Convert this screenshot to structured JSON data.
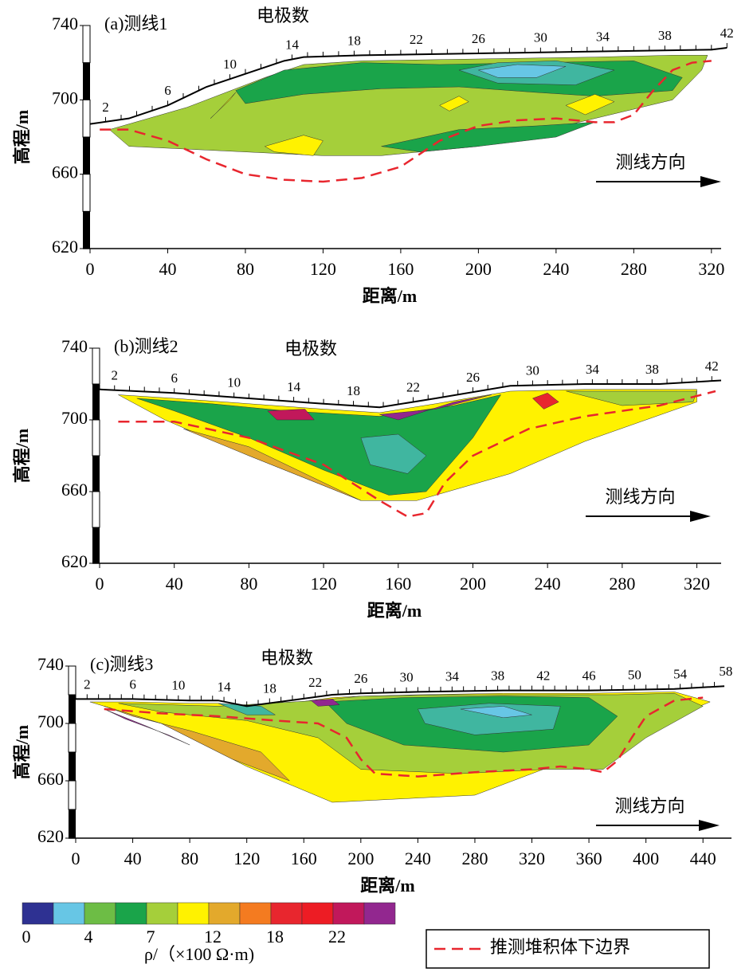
{
  "chart_data": [
    {
      "type": "resistivity-section",
      "title": "(a)测线1",
      "electrode_label": "电极数",
      "xlabel": "距离/m",
      "ylabel": "高程/m",
      "direction_label": "测线方向",
      "xlim": [
        0,
        325
      ],
      "ylim": [
        620,
        740
      ],
      "xticks": [
        0,
        40,
        80,
        120,
        160,
        200,
        240,
        280,
        320
      ],
      "yticks": [
        620,
        660,
        700,
        740
      ],
      "electrodes": [
        2,
        6,
        10,
        14,
        18,
        22,
        26,
        30,
        34,
        38,
        42
      ],
      "surface": {
        "color": "#000000",
        "x": [
          0,
          20,
          40,
          60,
          80,
          100,
          110,
          140,
          200,
          260,
          320,
          328
        ],
        "y": [
          687,
          690,
          697,
          707,
          714,
          721,
          723,
          724,
          725,
          726,
          727,
          728
        ]
      },
      "regions": [
        {
          "color": "#a5cf3a",
          "x": [
            10,
            30,
            50,
            70,
            90,
            110,
            140,
            200,
            260,
            300,
            318,
            315,
            300,
            260,
            220,
            200,
            150,
            120,
            20
          ],
          "y": [
            684,
            690,
            696,
            704,
            712,
            719,
            721,
            722,
            723,
            724,
            724,
            716,
            700,
            690,
            680,
            675,
            670,
            670,
            675
          ]
        },
        {
          "color": "#1aa44a",
          "x": [
            75,
            100,
            140,
            180,
            230,
            280,
            305,
            300,
            260,
            230,
            190,
            150,
            110,
            80
          ],
          "y": [
            705,
            716,
            720,
            719,
            720,
            721,
            712,
            705,
            702,
            704,
            707,
            706,
            703,
            698
          ]
        },
        {
          "color": "#1aa44a",
          "x": [
            150,
            190,
            230,
            260,
            240,
            200,
            170
          ],
          "y": [
            675,
            684,
            686,
            688,
            680,
            675,
            672
          ]
        },
        {
          "color": "#40b6a0",
          "x": [
            190,
            210,
            240,
            270,
            250,
            210
          ],
          "y": [
            716,
            720,
            721,
            716,
            708,
            709
          ]
        },
        {
          "color": "#67c6e5",
          "x": [
            200,
            220,
            245,
            230,
            210
          ],
          "y": [
            716,
            719,
            718,
            712,
            712
          ]
        },
        {
          "color": "#fff200",
          "x": [
            90,
            110,
            120,
            115,
            95
          ],
          "y": [
            675,
            681,
            678,
            670,
            672
          ]
        },
        {
          "color": "#fff200",
          "x": [
            180,
            190,
            195,
            185
          ],
          "y": [
            697,
            702,
            699,
            694
          ]
        },
        {
          "color": "#fff200",
          "x": [
            245,
            260,
            270,
            255
          ],
          "y": [
            697,
            703,
            699,
            692
          ]
        },
        {
          "color": "#fff200",
          "x": [
            65,
            75,
            72,
            62
          ],
          "y": [
            693,
            704,
            700,
            690
          ]
        }
      ],
      "boundary": {
        "color": "#e8262e",
        "x": [
          5,
          20,
          40,
          60,
          80,
          100,
          120,
          140,
          160,
          180,
          200,
          220,
          240,
          260,
          270,
          280,
          290,
          300,
          310,
          320
        ],
        "y": [
          684,
          684,
          678,
          668,
          660,
          657,
          656,
          658,
          664,
          678,
          686,
          689,
          690,
          688,
          688,
          692,
          705,
          716,
          720,
          721
        ]
      }
    },
    {
      "type": "resistivity-section",
      "title": "(b)测线2",
      "electrode_label": "电极数",
      "xlabel": "距离/m",
      "ylabel": "高程/m",
      "direction_label": "测线方向",
      "xlim": [
        0,
        333
      ],
      "ylim": [
        620,
        740
      ],
      "xticks": [
        0,
        40,
        80,
        120,
        160,
        200,
        240,
        280,
        320
      ],
      "yticks": [
        620,
        660,
        700,
        740
      ],
      "electrodes": [
        2,
        6,
        10,
        14,
        18,
        22,
        26,
        30,
        34,
        38,
        42
      ],
      "surface": {
        "color": "#000000",
        "x": [
          0,
          40,
          80,
          120,
          150,
          180,
          220,
          260,
          300,
          333
        ],
        "y": [
          717,
          715,
          712,
          709,
          707,
          712,
          719,
          720,
          720,
          722
        ]
      },
      "regions": [
        {
          "color": "#fff200",
          "x": [
            10,
            40,
            80,
            120,
            150,
            180,
            220,
            260,
            300,
            320,
            320,
            260,
            220,
            170,
            140,
            80,
            35
          ],
          "y": [
            714,
            712,
            709,
            706,
            704,
            709,
            716,
            717,
            717,
            717,
            710,
            688,
            670,
            655,
            655,
            680,
            700
          ]
        },
        {
          "color": "#1aa44a",
          "x": [
            20,
            60,
            100,
            150,
            190,
            215,
            200,
            175,
            155,
            120,
            80,
            40
          ],
          "y": [
            712,
            709,
            705,
            702,
            708,
            714,
            690,
            660,
            658,
            672,
            690,
            705
          ]
        },
        {
          "color": "#40b6a0",
          "x": [
            140,
            160,
            175,
            165,
            145
          ],
          "y": [
            690,
            692,
            680,
            670,
            675
          ]
        },
        {
          "color": "#e3a92c",
          "x": [
            45,
            80,
            140,
            120,
            80
          ],
          "y": [
            695,
            680,
            655,
            665,
            685
          ]
        },
        {
          "color": "#92278f",
          "x": [
            150,
            180,
            210,
            190,
            160
          ],
          "y": [
            703,
            706,
            714,
            710,
            700
          ]
        },
        {
          "color": "#c1185b",
          "x": [
            90,
            110,
            115,
            95
          ],
          "y": [
            705,
            706,
            700,
            700
          ]
        },
        {
          "color": "#e8262e",
          "x": [
            232,
            240,
            246,
            238
          ],
          "y": [
            712,
            715,
            710,
            706
          ]
        },
        {
          "color": "#a5cf3a",
          "x": [
            250,
            290,
            320,
            318,
            280
          ],
          "y": [
            716,
            716,
            716,
            710,
            708
          ]
        }
      ],
      "boundary": {
        "color": "#e8262e",
        "x": [
          10,
          40,
          80,
          120,
          150,
          165,
          175,
          185,
          200,
          230,
          260,
          300,
          330
        ],
        "y": [
          699,
          699,
          690,
          675,
          655,
          646,
          648,
          665,
          680,
          695,
          702,
          708,
          716
        ]
      }
    },
    {
      "type": "resistivity-section",
      "title": "(c)测线3",
      "electrode_label": "电极数",
      "xlabel": "距离/m",
      "ylabel": "高程/m",
      "direction_label": "测线方向",
      "xlim": [
        0,
        460
      ],
      "ylim": [
        620,
        740
      ],
      "xticks": [
        0,
        40,
        80,
        120,
        160,
        200,
        240,
        280,
        320,
        360,
        400,
        440
      ],
      "yticks": [
        620,
        660,
        700,
        740
      ],
      "electrodes": [
        2,
        6,
        10,
        14,
        18,
        22,
        26,
        30,
        34,
        38,
        42,
        46,
        50,
        54,
        58
      ],
      "surface": {
        "color": "#000000",
        "x": [
          0,
          40,
          80,
          100,
          120,
          150,
          180,
          200,
          240,
          300,
          360,
          420,
          455
        ],
        "y": [
          717,
          717,
          716,
          716,
          712,
          716,
          720,
          721,
          722,
          723,
          723,
          724,
          726
        ]
      },
      "regions": [
        {
          "color": "#fff200",
          "x": [
            10,
            40,
            80,
            100,
            120,
            150,
            180,
            200,
            240,
            300,
            360,
            420,
            445,
            360,
            280,
            180,
            120,
            60
          ],
          "y": [
            715,
            715,
            714,
            714,
            710,
            714,
            718,
            719,
            720,
            721,
            721,
            722,
            715,
            680,
            650,
            645,
            670,
            700
          ]
        },
        {
          "color": "#a5cf3a",
          "x": [
            30,
            100,
            170,
            200,
            260,
            330,
            380,
            420,
            440,
            400,
            370,
            330,
            270,
            200,
            170,
            120,
            60
          ],
          "y": [
            714,
            712,
            716,
            719,
            720,
            720,
            720,
            721,
            712,
            690,
            668,
            668,
            665,
            668,
            690,
            702,
            708
          ]
        },
        {
          "color": "#1aa44a",
          "x": [
            175,
            230,
            300,
            360,
            380,
            360,
            300,
            230,
            190
          ],
          "y": [
            715,
            718,
            719,
            718,
            705,
            685,
            680,
            685,
            700
          ]
        },
        {
          "color": "#40b6a0",
          "x": [
            240,
            290,
            340,
            335,
            280,
            245
          ],
          "y": [
            710,
            714,
            712,
            696,
            692,
            700
          ]
        },
        {
          "color": "#67c6e5",
          "x": [
            270,
            300,
            320,
            300
          ],
          "y": [
            710,
            712,
            706,
            704
          ]
        },
        {
          "color": "#e3a92c",
          "x": [
            20,
            60,
            110,
            150,
            130,
            80,
            40
          ],
          "y": [
            712,
            700,
            675,
            660,
            680,
            695,
            705
          ]
        },
        {
          "color": "#92278f",
          "x": [
            20,
            50,
            80,
            65,
            35
          ],
          "y": [
            710,
            698,
            685,
            692,
            703
          ]
        },
        {
          "color": "#40b6a0",
          "x": [
            100,
            130,
            140,
            120
          ],
          "y": [
            714,
            712,
            706,
            706
          ]
        },
        {
          "color": "#92278f",
          "x": [
            165,
            180,
            185,
            170
          ],
          "y": [
            716,
            717,
            713,
            712
          ]
        }
      ],
      "boundary": {
        "color": "#e8262e",
        "x": [
          20,
          60,
          100,
          140,
          170,
          190,
          200,
          210,
          240,
          280,
          320,
          340,
          360,
          370,
          380,
          390,
          400,
          420,
          440
        ],
        "y": [
          710,
          707,
          705,
          702,
          700,
          690,
          675,
          665,
          663,
          666,
          668,
          670,
          668,
          666,
          674,
          690,
          705,
          716,
          718
        ]
      }
    }
  ],
  "colorbar": {
    "colors": [
      "#2e3192",
      "#67c6e5",
      "#6dbd45",
      "#1aa44a",
      "#a5cf3a",
      "#fff200",
      "#e3a92c",
      "#f47b20",
      "#e8262e",
      "#ed1c24",
      "#c1185b",
      "#92278f"
    ],
    "ticks": [
      0,
      4,
      7,
      12,
      18,
      22
    ],
    "label": "ρ/（×100 Ω·m)"
  },
  "legend_label": "推测堆积体下边界"
}
